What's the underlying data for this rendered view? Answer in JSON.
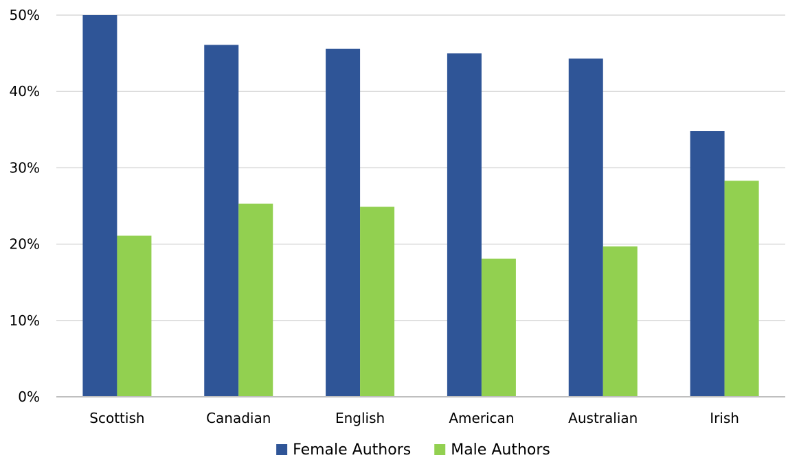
{
  "chart_data": {
    "type": "bar",
    "categories": [
      "Scottish",
      "Canadian",
      "English",
      "American",
      "Australian",
      "Irish"
    ],
    "series": [
      {
        "name": "Female Authors",
        "color": "#2f5597",
        "values": [
          50,
          46.1,
          45.6,
          45.0,
          44.3,
          34.8
        ]
      },
      {
        "name": "Male Authors",
        "color": "#92d050",
        "values": [
          21.1,
          25.3,
          24.9,
          18.1,
          19.7,
          28.3
        ]
      }
    ],
    "title": "",
    "xlabel": "",
    "ylabel": "",
    "ylim": [
      0,
      50
    ],
    "yticks": [
      0,
      10,
      20,
      30,
      40,
      50
    ],
    "ytick_labels": [
      "0%",
      "10%",
      "20%",
      "30%",
      "40%",
      "50%"
    ],
    "grid": true,
    "legend_position": "bottom"
  }
}
